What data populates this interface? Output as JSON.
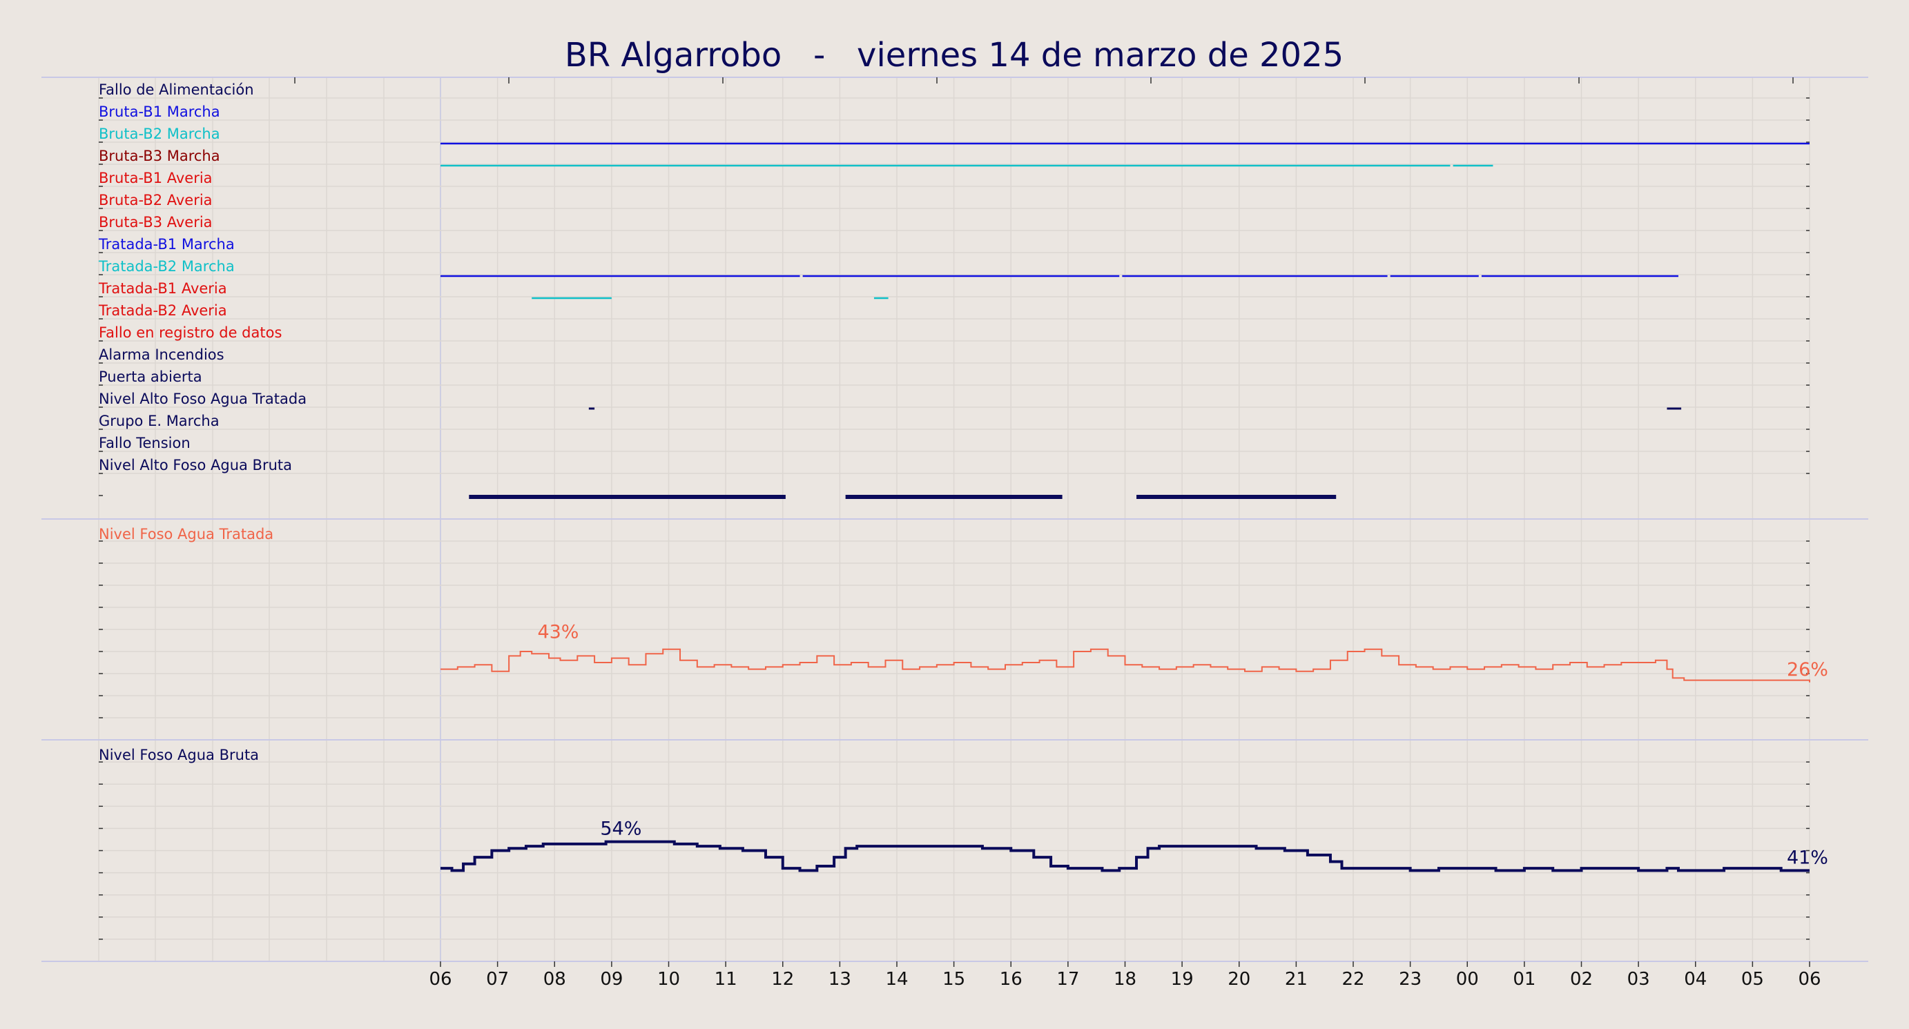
{
  "title": "BR Algarrobo   -   viernes 14 de marzo de 2025",
  "colors": {
    "background": "#ebe6e1",
    "navy": "#0a0a5a",
    "blue": "#1010e0",
    "cyan": "#10c0c8",
    "darkred": "#8b0000",
    "red": "#e01010",
    "coral": "#f06448",
    "grid": "#dcd7d2",
    "separator": "#c8c8e6"
  },
  "x_ticks": [
    "06",
    "07",
    "08",
    "09",
    "10",
    "11",
    "12",
    "13",
    "14",
    "15",
    "16",
    "17",
    "18",
    "19",
    "20",
    "21",
    "22",
    "23",
    "00",
    "01",
    "02",
    "03",
    "04",
    "05",
    "06"
  ],
  "chart_data": [
    {
      "type": "timeline",
      "x_range_hours": [
        0,
        24
      ],
      "signals": [
        {
          "name": "Fallo de Alimentación",
          "color": "#0a0a5a",
          "segments": [],
          "width": 2
        },
        {
          "name": "Bruta-B1 Marcha",
          "color": "#1010e0",
          "segments": [
            [
              0,
              24
            ]
          ],
          "width": 2.5
        },
        {
          "name": "Bruta-B2 Marcha",
          "color": "#10c0c8",
          "segments": [
            [
              0,
              17.7
            ],
            [
              17.75,
              18.45
            ]
          ],
          "width": 2.5
        },
        {
          "name": "Bruta-B3 Marcha",
          "color": "#8b0000",
          "segments": [],
          "width": 2
        },
        {
          "name": "Bruta-B1 Averia",
          "color": "#e01010",
          "segments": [],
          "width": 2
        },
        {
          "name": "Bruta-B2 Averia",
          "color": "#e01010",
          "segments": [],
          "width": 2
        },
        {
          "name": "Bruta-B3 Averia",
          "color": "#e01010",
          "segments": [],
          "width": 2
        },
        {
          "name": "Tratada-B1 Marcha",
          "color": "#1010e0",
          "segments": [
            [
              0,
              6.3
            ],
            [
              6.35,
              11.9
            ],
            [
              11.95,
              16.6
            ],
            [
              16.65,
              18.2
            ],
            [
              18.25,
              21.7
            ]
          ],
          "width": 2.5
        },
        {
          "name": "Tratada-B2 Marcha",
          "color": "#10c0c8",
          "segments": [
            [
              1.6,
              3.0
            ],
            [
              7.6,
              7.85
            ]
          ],
          "width": 2.5
        },
        {
          "name": "Tratada-B1 Averia",
          "color": "#e01010",
          "segments": [],
          "width": 2
        },
        {
          "name": "Tratada-B2 Averia",
          "color": "#e01010",
          "segments": [],
          "width": 2
        },
        {
          "name": "Fallo en registro de datos",
          "color": "#e01010",
          "segments": [],
          "width": 2
        },
        {
          "name": "Alarma Incendios",
          "color": "#0a0a5a",
          "segments": [],
          "width": 2
        },
        {
          "name": "Puerta abierta",
          "color": "#0a0a5a",
          "segments": [
            [
              2.6,
              2.7
            ],
            [
              21.5,
              21.75
            ]
          ],
          "width": 3
        },
        {
          "name": "Nivel Alto Foso Agua Tratada",
          "color": "#0a0a5a",
          "segments": [],
          "width": 2
        },
        {
          "name": "Grupo E. Marcha",
          "color": "#0a0a5a",
          "segments": [],
          "width": 2
        },
        {
          "name": "Fallo Tension",
          "color": "#0a0a5a",
          "segments": [],
          "width": 2
        },
        {
          "name": "Nivel Alto Foso Agua Bruta",
          "color": "#0a0a5a",
          "segments": [
            [
              0.5,
              6.05
            ],
            [
              7.1,
              10.9
            ],
            [
              12.2,
              15.7
            ]
          ],
          "width": 6
        }
      ]
    },
    {
      "type": "line",
      "name": "Nivel Foso Agua Tratada",
      "color": "#f06448",
      "ylim": [
        0,
        100
      ],
      "labels": [
        {
          "text": "43%",
          "x": 1.7,
          "y": 43
        },
        {
          "text": "26%",
          "x": 23.6,
          "y": 26
        }
      ],
      "x": [
        0,
        0.3,
        0.6,
        0.9,
        1.2,
        1.4,
        1.6,
        1.9,
        2.1,
        2.4,
        2.7,
        3.0,
        3.3,
        3.6,
        3.9,
        4.2,
        4.5,
        4.8,
        5.1,
        5.4,
        5.7,
        6.0,
        6.3,
        6.6,
        6.9,
        7.2,
        7.5,
        7.8,
        8.1,
        8.4,
        8.7,
        9.0,
        9.3,
        9.6,
        9.9,
        10.2,
        10.5,
        10.8,
        11.1,
        11.4,
        11.7,
        12.0,
        12.3,
        12.6,
        12.9,
        13.2,
        13.5,
        13.8,
        14.1,
        14.4,
        14.7,
        15.0,
        15.3,
        15.6,
        15.9,
        16.2,
        16.5,
        16.8,
        17.1,
        17.4,
        17.7,
        18.0,
        18.3,
        18.6,
        18.9,
        19.2,
        19.5,
        19.8,
        20.1,
        20.4,
        20.7,
        21.0,
        21.3,
        21.5,
        21.6,
        21.8,
        22.2,
        22.6,
        23.0,
        23.4,
        24.0
      ],
      "y": [
        32,
        33,
        34,
        31,
        38,
        40,
        39,
        37,
        36,
        38,
        35,
        37,
        34,
        39,
        41,
        36,
        33,
        34,
        33,
        32,
        33,
        34,
        35,
        38,
        34,
        35,
        33,
        36,
        32,
        33,
        34,
        35,
        33,
        32,
        34,
        35,
        36,
        33,
        40,
        41,
        38,
        34,
        33,
        32,
        33,
        34,
        33,
        32,
        31,
        33,
        32,
        31,
        32,
        36,
        40,
        41,
        38,
        34,
        33,
        32,
        33,
        32,
        33,
        34,
        33,
        32,
        34,
        35,
        33,
        34,
        35,
        35,
        36,
        32,
        28,
        27,
        27,
        27,
        27,
        27,
        26
      ]
    },
    {
      "type": "line",
      "name": "Nivel Foso Agua Bruta",
      "color": "#0a0a5a",
      "ylim": [
        0,
        100
      ],
      "labels": [
        {
          "text": "54%",
          "x": 2.8,
          "y": 54
        },
        {
          "text": "41%",
          "x": 23.6,
          "y": 41
        }
      ],
      "x": [
        0,
        0.2,
        0.4,
        0.6,
        0.9,
        1.2,
        1.5,
        1.8,
        2.1,
        2.5,
        2.9,
        3.3,
        3.7,
        4.1,
        4.5,
        4.9,
        5.3,
        5.7,
        6.0,
        6.1,
        6.3,
        6.6,
        6.9,
        7.1,
        7.3,
        7.6,
        8.0,
        8.5,
        9.0,
        9.5,
        10.0,
        10.4,
        10.7,
        11.0,
        11.3,
        11.6,
        11.9,
        12.2,
        12.4,
        12.6,
        12.9,
        13.3,
        13.8,
        14.3,
        14.8,
        15.2,
        15.6,
        15.8,
        16.0,
        16.5,
        17.0,
        17.5,
        18.0,
        18.5,
        19.0,
        19.5,
        20.0,
        20.5,
        21.0,
        21.5,
        21.7,
        22.0,
        22.5,
        23.0,
        23.5,
        24.0
      ],
      "y": [
        42,
        41,
        44,
        47,
        50,
        51,
        52,
        53,
        53,
        53,
        54,
        54,
        54,
        53,
        52,
        51,
        50,
        47,
        42,
        42,
        41,
        43,
        47,
        51,
        52,
        52,
        52,
        52,
        52,
        51,
        50,
        47,
        43,
        42,
        42,
        41,
        42,
        47,
        51,
        52,
        52,
        52,
        52,
        51,
        50,
        48,
        45,
        42,
        42,
        42,
        41,
        42,
        42,
        41,
        42,
        41,
        42,
        42,
        41,
        42,
        41,
        41,
        42,
        42,
        41,
        41
      ]
    }
  ]
}
